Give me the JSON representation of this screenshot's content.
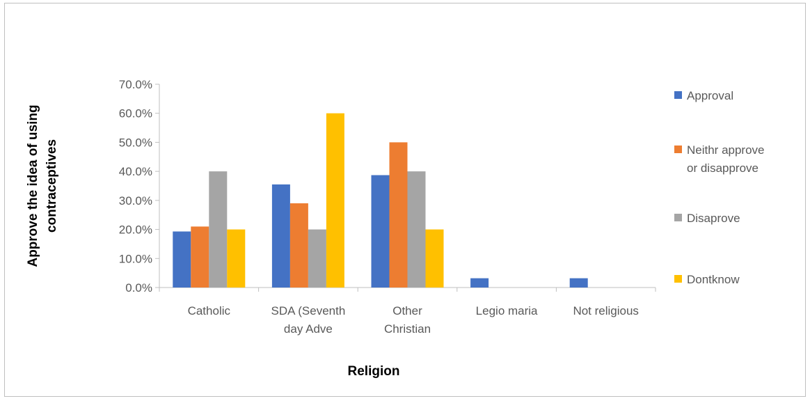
{
  "chart_data": {
    "type": "bar",
    "title": "",
    "xlabel": "Religion",
    "ylabel_lines": [
      "Approve  the idea of using",
      "contraceptives"
    ],
    "categories": [
      [
        "Catholic"
      ],
      [
        "SDA (Seventh",
        "day Adve"
      ],
      [
        "Other",
        "Christian"
      ],
      [
        "Legio maria"
      ],
      [
        "Not religious"
      ]
    ],
    "series": [
      {
        "name": "Approval",
        "color": "#4472C4",
        "values": [
          0.193,
          0.355,
          0.387,
          0.032,
          0.032
        ]
      },
      {
        "name_lines": [
          "Neithr approve",
          "or disapprove"
        ],
        "color": "#ED7D31",
        "values": [
          0.21,
          0.29,
          0.5,
          0.0,
          0.0
        ]
      },
      {
        "name": "Disaprove",
        "color": "#A5A5A5",
        "values": [
          0.4,
          0.2,
          0.4,
          0.0,
          0.0
        ]
      },
      {
        "name": "Dontknow",
        "color": "#FFC000",
        "values": [
          0.2,
          0.6,
          0.2,
          0.0,
          0.0
        ]
      }
    ],
    "ylim": [
      0,
      0.7
    ],
    "yticks": [
      "0.0%",
      "10.0%",
      "20.0%",
      "30.0%",
      "40.0%",
      "50.0%",
      "60.0%",
      "70.0%"
    ],
    "grid": false,
    "legend_position": "right"
  }
}
